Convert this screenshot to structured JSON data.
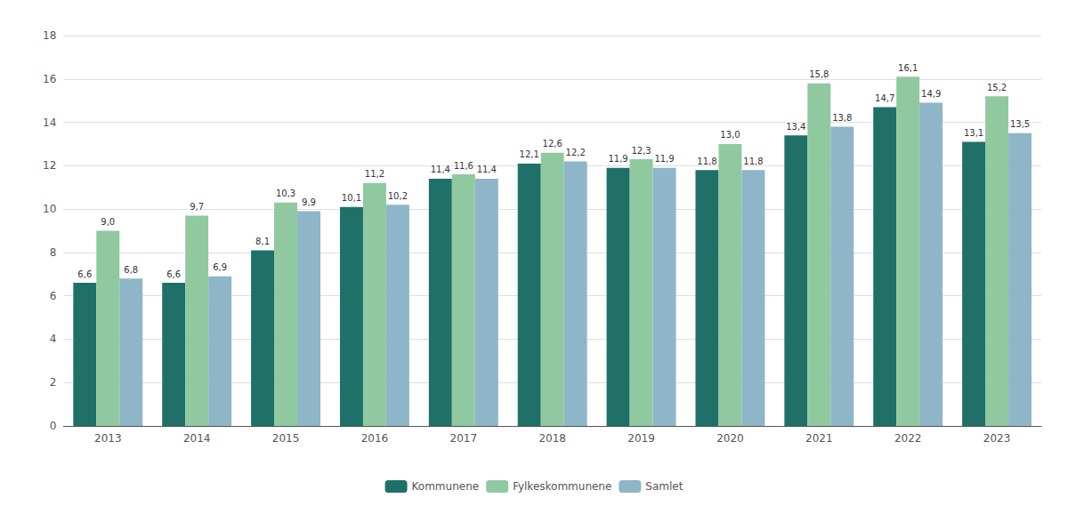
{
  "chart_data": {
    "type": "bar",
    "categories": [
      "2013",
      "2014",
      "2015",
      "2016",
      "2017",
      "2018",
      "2019",
      "2020",
      "2021",
      "2022",
      "2023"
    ],
    "series": [
      {
        "name": "Kommunene",
        "color": "#1E7068",
        "values": [
          6.6,
          6.6,
          8.1,
          10.1,
          11.4,
          12.1,
          11.9,
          11.8,
          13.4,
          14.7,
          13.1
        ],
        "value_labels": [
          "6,6",
          "6,6",
          "8,1",
          "10,1",
          "11,4",
          "12,1",
          "11,9",
          "11,8",
          "13,4",
          "14,7",
          "13,1"
        ]
      },
      {
        "name": "Fylkeskommunene",
        "color": "#90C9A0",
        "values": [
          9.0,
          9.7,
          10.3,
          11.2,
          11.6,
          12.6,
          12.3,
          13.0,
          15.8,
          16.1,
          15.2
        ],
        "value_labels": [
          "9,0",
          "9,7",
          "10,3",
          "11,2",
          "11,6",
          "12,6",
          "12,3",
          "13,0",
          "15,8",
          "16,1",
          "15,2"
        ]
      },
      {
        "name": "Samlet",
        "color": "#8EB5C8",
        "values": [
          6.8,
          6.9,
          9.9,
          10.2,
          11.4,
          12.2,
          11.9,
          11.8,
          13.8,
          14.9,
          13.5
        ],
        "value_labels": [
          "6,8",
          "6,9",
          "9,9",
          "10,2",
          "11,4",
          "12,2",
          "11,9",
          "11,8",
          "13,8",
          "14,9",
          "13,5"
        ]
      }
    ],
    "ylim": [
      0,
      18
    ],
    "yticks": [
      0,
      2,
      4,
      6,
      8,
      10,
      12,
      14,
      16,
      18
    ],
    "grid": true,
    "legend": "bottom",
    "data_labels": true
  }
}
